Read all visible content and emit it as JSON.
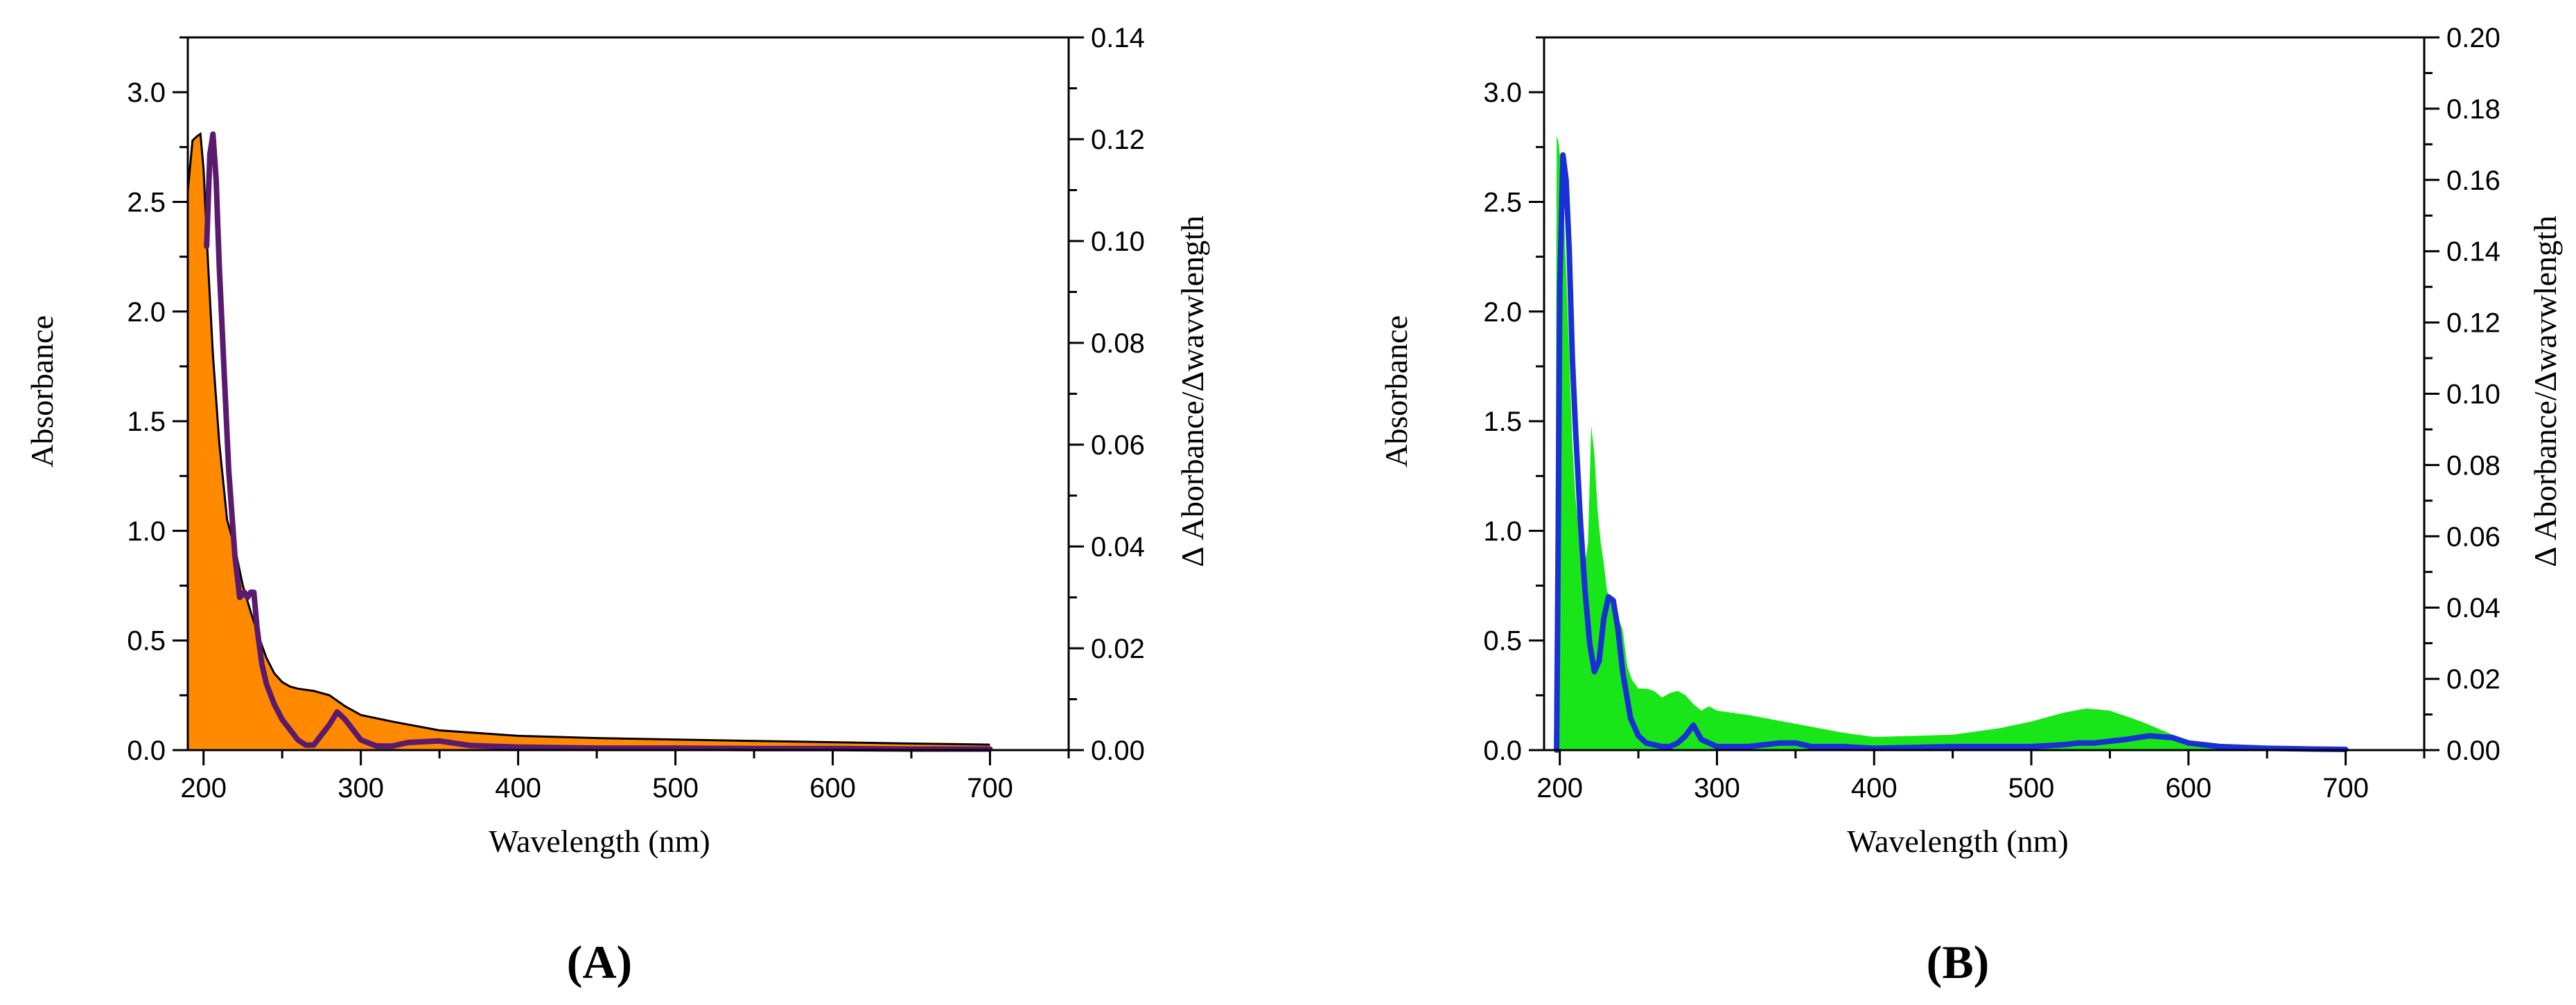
{
  "chart_data": [
    {
      "type": "area",
      "panel_label": "A",
      "xlabel": "Wavelength (nm)",
      "ylabel": "Absorbance",
      "y2label": "Δ Aborbance/Δwavwlength",
      "xlim": [
        190,
        750
      ],
      "ylim": [
        0,
        3.25
      ],
      "y2lim": [
        0,
        0.14
      ],
      "xticks": [
        200,
        300,
        400,
        500,
        600,
        700
      ],
      "yticks": [
        0.0,
        0.5,
        1.0,
        1.5,
        2.0,
        2.5,
        3.0
      ],
      "y2ticks": [
        0.0,
        0.02,
        0.04,
        0.06,
        0.08,
        0.1,
        0.12,
        0.14
      ],
      "grid": false,
      "colors": {
        "fill": "#ff8a00",
        "outline": "#000000",
        "derivative": "#5a1a6e"
      },
      "series": [
        {
          "axis": "left",
          "style": "filled-area",
          "x": [
            190,
            193,
            196,
            198,
            200,
            203,
            206,
            210,
            215,
            220,
            225,
            230,
            235,
            240,
            245,
            250,
            255,
            260,
            270,
            280,
            290,
            300,
            320,
            350,
            400,
            450,
            500,
            550,
            600,
            650,
            700
          ],
          "y": [
            2.55,
            2.78,
            2.8,
            2.81,
            2.65,
            2.2,
            1.8,
            1.4,
            1.05,
            0.92,
            0.75,
            0.63,
            0.52,
            0.42,
            0.35,
            0.31,
            0.29,
            0.28,
            0.27,
            0.25,
            0.2,
            0.16,
            0.13,
            0.09,
            0.065,
            0.055,
            0.048,
            0.042,
            0.036,
            0.03,
            0.025
          ]
        },
        {
          "axis": "right",
          "style": "thick-line",
          "x": [
            202,
            204,
            206,
            208,
            210,
            213,
            216,
            220,
            223,
            226,
            228,
            230,
            232,
            234,
            237,
            240,
            245,
            250,
            255,
            260,
            265,
            270,
            275,
            280,
            285,
            290,
            295,
            300,
            310,
            320,
            330,
            350,
            370,
            400,
            450,
            500,
            550,
            600,
            650,
            700
          ],
          "y": [
            0.099,
            0.117,
            0.121,
            0.112,
            0.095,
            0.075,
            0.055,
            0.038,
            0.03,
            0.031,
            0.03,
            0.031,
            0.031,
            0.024,
            0.017,
            0.013,
            0.009,
            0.006,
            0.004,
            0.002,
            0.001,
            0.001,
            0.003,
            0.005,
            0.0075,
            0.006,
            0.004,
            0.002,
            0.0008,
            0.0008,
            0.0015,
            0.0018,
            0.0009,
            0.0006,
            0.0004,
            0.0004,
            0.0003,
            0.0003,
            0.0002,
            0.0002
          ]
        }
      ]
    },
    {
      "type": "area",
      "panel_label": "B",
      "xlabel": "Wavelength (nm)",
      "ylabel": "Absorbance",
      "y2label": "Δ Aborbance/Δwavwlength",
      "xlim": [
        190,
        750
      ],
      "ylim": [
        0,
        3.25
      ],
      "y2lim": [
        0,
        0.2
      ],
      "xticks": [
        200,
        300,
        400,
        500,
        600,
        700
      ],
      "yticks": [
        0.0,
        0.5,
        1.0,
        1.5,
        2.0,
        2.5,
        3.0
      ],
      "y2ticks": [
        0.0,
        0.02,
        0.04,
        0.06,
        0.08,
        0.1,
        0.12,
        0.14,
        0.16,
        0.18,
        0.2
      ],
      "grid": false,
      "colors": {
        "fill": "#19e619",
        "derivative": "#1a2fd6"
      },
      "series": [
        {
          "axis": "left",
          "style": "filled-area",
          "x": [
            197,
            198,
            199,
            200,
            202,
            204,
            206,
            208,
            210,
            212,
            214,
            216,
            218,
            220,
            222,
            224,
            226,
            228,
            230,
            233,
            236,
            240,
            243,
            246,
            250,
            255,
            260,
            265,
            270,
            275,
            280,
            285,
            290,
            295,
            300,
            320,
            350,
            380,
            400,
            450,
            480,
            500,
            520,
            535,
            550,
            570,
            590,
            600,
            620,
            640,
            660,
            680,
            700
          ],
          "y": [
            0,
            2.8,
            2.78,
            2.72,
            2.55,
            2.2,
            1.8,
            1.4,
            1.15,
            1.0,
            0.9,
            0.85,
            0.95,
            1.48,
            1.35,
            1.1,
            0.95,
            0.85,
            0.73,
            0.67,
            0.62,
            0.55,
            0.38,
            0.32,
            0.28,
            0.28,
            0.27,
            0.24,
            0.26,
            0.27,
            0.25,
            0.21,
            0.18,
            0.2,
            0.18,
            0.16,
            0.12,
            0.08,
            0.06,
            0.07,
            0.1,
            0.13,
            0.17,
            0.19,
            0.18,
            0.13,
            0.07,
            0.04,
            0.015,
            0.006,
            0.003,
            0.002,
            0.002
          ]
        },
        {
          "axis": "right",
          "style": "thick-line",
          "x": [
            198,
            199,
            200,
            202,
            204,
            206,
            208,
            210,
            213,
            216,
            219,
            222,
            225,
            228,
            231,
            234,
            237,
            240,
            245,
            250,
            255,
            260,
            265,
            270,
            275,
            280,
            285,
            290,
            300,
            320,
            340,
            350,
            360,
            380,
            400,
            450,
            500,
            520,
            530,
            540,
            560,
            575,
            590,
            600,
            620,
            650,
            680,
            700
          ],
          "y": [
            0,
            0.06,
            0.13,
            0.167,
            0.16,
            0.14,
            0.11,
            0.09,
            0.065,
            0.045,
            0.03,
            0.022,
            0.025,
            0.037,
            0.043,
            0.042,
            0.034,
            0.022,
            0.009,
            0.004,
            0.002,
            0.0015,
            0.001,
            0.001,
            0.002,
            0.004,
            0.007,
            0.003,
            0.001,
            0.001,
            0.002,
            0.002,
            0.001,
            0.001,
            0.0005,
            0.001,
            0.001,
            0.0015,
            0.002,
            0.002,
            0.003,
            0.004,
            0.0035,
            0.002,
            0.001,
            0.0005,
            0.0003,
            0.0002
          ]
        }
      ]
    }
  ]
}
